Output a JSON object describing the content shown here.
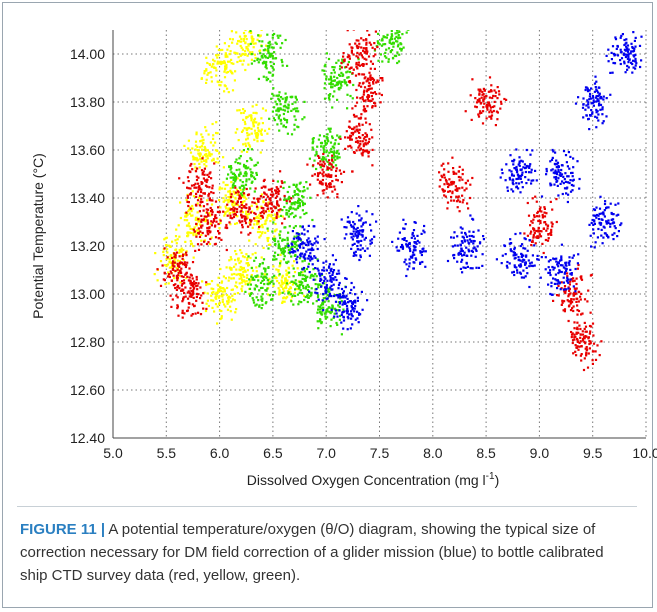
{
  "chart_data": {
    "type": "scatter",
    "xlabel": "Dissolved Oxygen Concentration (mg l",
    "xlabel_sup": "-1",
    "xlabel_end": ")",
    "ylabel": "Potential Temperature (°C)",
    "xlim": [
      5.0,
      10.0
    ],
    "ylim": [
      12.4,
      14.1
    ],
    "xticks": [
      "5.0",
      "5.5",
      "6.0",
      "6.5",
      "7.0",
      "7.5",
      "8.0",
      "8.5",
      "9.0",
      "9.5",
      "10.0"
    ],
    "yticks": [
      "12.40",
      "12.60",
      "12.80",
      "13.00",
      "13.20",
      "13.40",
      "13.60",
      "13.80",
      "14.00"
    ],
    "grid": true,
    "series": [
      {
        "color": "#ffff00",
        "regions": [
          {
            "x": 5.55,
            "y": 13.15
          },
          {
            "x": 5.75,
            "y": 13.3
          },
          {
            "x": 5.85,
            "y": 13.6
          },
          {
            "x": 6.0,
            "y": 13.95
          },
          {
            "x": 6.1,
            "y": 13.4
          },
          {
            "x": 6.2,
            "y": 13.1
          },
          {
            "x": 6.0,
            "y": 13.0
          },
          {
            "x": 6.4,
            "y": 13.3
          },
          {
            "x": 6.6,
            "y": 13.05
          },
          {
            "x": 6.3,
            "y": 13.7
          },
          {
            "x": 6.25,
            "y": 14.05
          }
        ]
      },
      {
        "color": "#33dd00",
        "regions": [
          {
            "x": 6.45,
            "y": 14.0
          },
          {
            "x": 6.6,
            "y": 13.75
          },
          {
            "x": 6.7,
            "y": 13.4
          },
          {
            "x": 6.6,
            "y": 13.2
          },
          {
            "x": 6.4,
            "y": 13.05
          },
          {
            "x": 6.8,
            "y": 13.05
          },
          {
            "x": 7.0,
            "y": 12.95
          },
          {
            "x": 7.0,
            "y": 13.6
          },
          {
            "x": 7.1,
            "y": 13.9
          },
          {
            "x": 7.6,
            "y": 14.05
          },
          {
            "x": 6.2,
            "y": 13.5
          }
        ]
      },
      {
        "color": "#e80000",
        "regions": [
          {
            "x": 5.6,
            "y": 13.1
          },
          {
            "x": 5.7,
            "y": 13.0
          },
          {
            "x": 5.9,
            "y": 13.3
          },
          {
            "x": 6.2,
            "y": 13.35
          },
          {
            "x": 6.5,
            "y": 13.4
          },
          {
            "x": 7.0,
            "y": 13.5
          },
          {
            "x": 7.3,
            "y": 13.65
          },
          {
            "x": 7.4,
            "y": 13.85
          },
          {
            "x": 7.3,
            "y": 14.0
          },
          {
            "x": 8.2,
            "y": 13.45
          },
          {
            "x": 8.5,
            "y": 13.8
          },
          {
            "x": 9.0,
            "y": 13.3
          },
          {
            "x": 9.3,
            "y": 13.0
          },
          {
            "x": 9.4,
            "y": 12.8
          },
          {
            "x": 5.8,
            "y": 13.45
          }
        ]
      },
      {
        "color": "#0000ee",
        "regions": [
          {
            "x": 6.8,
            "y": 13.2
          },
          {
            "x": 7.0,
            "y": 13.05
          },
          {
            "x": 7.2,
            "y": 12.95
          },
          {
            "x": 7.3,
            "y": 13.25
          },
          {
            "x": 7.8,
            "y": 13.2
          },
          {
            "x": 8.3,
            "y": 13.2
          },
          {
            "x": 8.8,
            "y": 13.15
          },
          {
            "x": 9.2,
            "y": 13.1
          },
          {
            "x": 9.2,
            "y": 13.5
          },
          {
            "x": 9.5,
            "y": 13.8
          },
          {
            "x": 9.8,
            "y": 14.0
          },
          {
            "x": 9.6,
            "y": 13.3
          },
          {
            "x": 8.8,
            "y": 13.5
          }
        ]
      }
    ]
  },
  "caption": {
    "label": "FIGURE 11 |",
    "text": "A potential temperature/oxygen (θ/O) diagram, showing the typical size of correction necessary for DM field correction of a glider mission (blue) to bottle calibrated ship CTD survey data (red, yellow, green)."
  }
}
